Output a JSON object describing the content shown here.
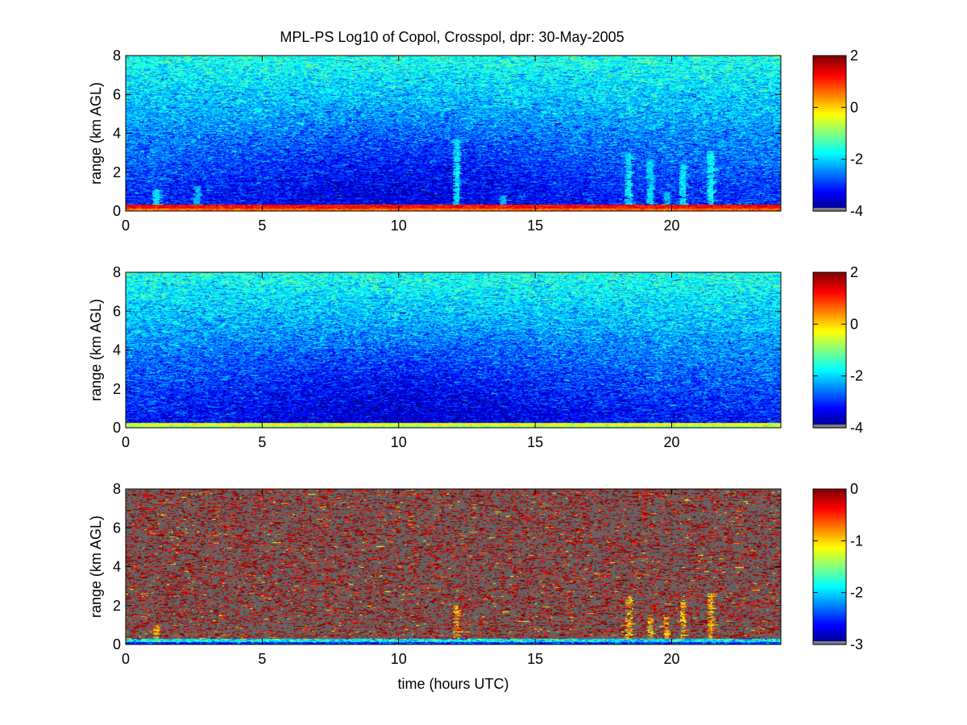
{
  "figure": {
    "title": "MPL-PS Log10 of Copol, Crosspol, dpr: 30-May-2005",
    "background": "#ffffff"
  },
  "chart_data": [
    {
      "type": "heatmap",
      "title": "MPL-PS Log10 of Copol, Crosspol, dpr: 30-May-2005",
      "xlabel": "",
      "ylabel": "range (km AGL)",
      "xlim": [
        0,
        24
      ],
      "ylim": [
        0,
        8
      ],
      "xticks": [
        "0",
        "5",
        "10",
        "15",
        "20"
      ],
      "xtick_values": [
        0,
        5,
        10,
        15,
        20
      ],
      "yticks": [
        "0",
        "2",
        "4",
        "6",
        "8"
      ],
      "ytick_values": [
        0,
        2,
        4,
        6,
        8
      ],
      "colorbar": {
        "min": -4,
        "max": 2,
        "ticks": [
          "-4",
          "-2",
          "0",
          "2"
        ],
        "tick_values": [
          -4,
          -2,
          0,
          2
        ],
        "colormap": "jet"
      },
      "field": {
        "surface_value": 1.2,
        "near_surface_top_km": 0.35,
        "clear_air_value_at_0km": -3.1,
        "clear_air_value_at_8km": -1.6,
        "midday_minimum_value": -3.6,
        "midday_center_hour": 10,
        "noise_amplitude": 0.9,
        "plumes": [
          {
            "hour": 1.1,
            "top_km": 1.1,
            "value": -1.9
          },
          {
            "hour": 2.6,
            "top_km": 1.3,
            "value": -2.2
          },
          {
            "hour": 12.1,
            "top_km": 3.7,
            "value": -1.9
          },
          {
            "hour": 13.8,
            "top_km": 0.8,
            "value": -2.2
          },
          {
            "hour": 18.4,
            "top_km": 3.0,
            "value": -1.9
          },
          {
            "hour": 19.2,
            "top_km": 2.7,
            "value": -2.0
          },
          {
            "hour": 19.8,
            "top_km": 1.0,
            "value": -2.1
          },
          {
            "hour": 20.4,
            "top_km": 2.4,
            "value": -1.9
          },
          {
            "hour": 21.4,
            "top_km": 3.1,
            "value": -1.8
          }
        ]
      }
    },
    {
      "type": "heatmap",
      "title": "",
      "xlabel": "",
      "ylabel": "range (km AGL)",
      "xlim": [
        0,
        24
      ],
      "ylim": [
        0,
        8
      ],
      "xticks": [
        "0",
        "5",
        "10",
        "15",
        "20"
      ],
      "xtick_values": [
        0,
        5,
        10,
        15,
        20
      ],
      "yticks": [
        "0",
        "2",
        "4",
        "6",
        "8"
      ],
      "ytick_values": [
        0,
        2,
        4,
        6,
        8
      ],
      "colorbar": {
        "min": -4,
        "max": 2,
        "ticks": [
          "-4",
          "-2",
          "0",
          "2"
        ],
        "tick_values": [
          -4,
          -2,
          0,
          2
        ],
        "colormap": "jet"
      },
      "field": {
        "surface_value": -0.4,
        "near_surface_top_km": 0.25,
        "clear_air_value_at_0km": -3.2,
        "clear_air_value_at_8km": -1.6,
        "midday_minimum_value": -3.7,
        "midday_center_hour": 10,
        "noise_amplitude": 0.9,
        "plumes": []
      }
    },
    {
      "type": "heatmap",
      "title": "",
      "xlabel": "time (hours UTC)",
      "ylabel": "range (km AGL)",
      "xlim": [
        0,
        24
      ],
      "ylim": [
        0,
        8
      ],
      "xticks": [
        "0",
        "5",
        "10",
        "15",
        "20"
      ],
      "xtick_values": [
        0,
        5,
        10,
        15,
        20
      ],
      "yticks": [
        "0",
        "2",
        "4",
        "6",
        "8"
      ],
      "ytick_values": [
        0,
        2,
        4,
        6,
        8
      ],
      "colorbar": {
        "min": -3,
        "max": 0,
        "ticks": [
          "-3",
          "-2",
          "-1",
          "0"
        ],
        "tick_values": [
          -3,
          -2,
          -1,
          0
        ],
        "colormap": "jet"
      },
      "missing_color": "#646464",
      "field": {
        "surface_value": -1.9,
        "near_surface_top_km": 0.3,
        "valid_fraction": 0.32,
        "valid_value": -0.15,
        "plumes": [
          {
            "hour": 1.1,
            "top_km": 1.0,
            "value": -0.9
          },
          {
            "hour": 12.1,
            "top_km": 2.0,
            "value": -0.9
          },
          {
            "hour": 18.4,
            "top_km": 2.5,
            "value": -0.9
          },
          {
            "hour": 19.2,
            "top_km": 1.5,
            "value": -0.9
          },
          {
            "hour": 19.8,
            "top_km": 1.4,
            "value": -0.9
          },
          {
            "hour": 20.4,
            "top_km": 2.3,
            "value": -0.9
          },
          {
            "hour": 21.4,
            "top_km": 2.6,
            "value": -0.9
          }
        ]
      }
    }
  ]
}
